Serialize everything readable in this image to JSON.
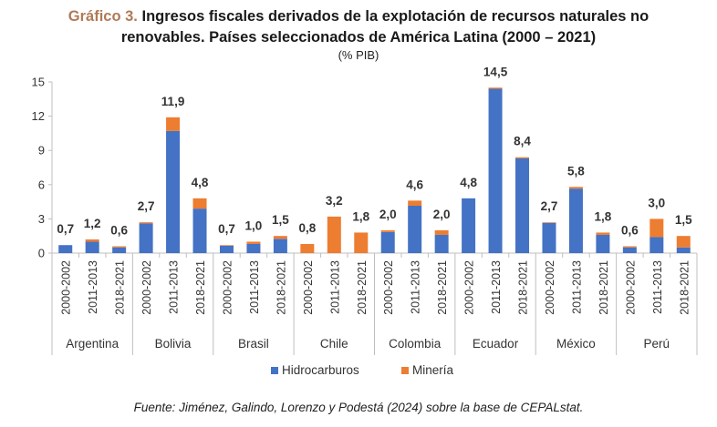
{
  "title_lead": "Gráfico 3.",
  "title_line1": "Ingresos fiscales derivados de la explotación de recursos naturales no",
  "title_line2": "renovables. Países seleccionados de América Latina (2000 – 2021)",
  "subtitle": "(% PIB)",
  "source": "Fuente: Jiménez, Galindo, Lorenzo y Podestá (2024) sobre la base de CEPALstat.",
  "colors": {
    "hidrocarburos": "#4472c4",
    "mineria": "#ed7d31"
  },
  "chart_data": {
    "type": "bar",
    "stacked": true,
    "ylim": [
      0,
      15
    ],
    "yticks": [
      0,
      3,
      6,
      9,
      12,
      15
    ],
    "grid": false,
    "legend_position": "bottom",
    "groups": [
      {
        "country": "Argentina",
        "bars": [
          {
            "period": "2000-2002",
            "hidrocarburos": 0.7,
            "mineria": 0.0,
            "total_label": "0,7"
          },
          {
            "period": "2011-2013",
            "hidrocarburos": 1.0,
            "mineria": 0.2,
            "total_label": "1,2"
          },
          {
            "period": "2018-2021",
            "hidrocarburos": 0.5,
            "mineria": 0.1,
            "total_label": "0,6"
          }
        ]
      },
      {
        "country": "Bolivia",
        "bars": [
          {
            "period": "2000-2002",
            "hidrocarburos": 2.6,
            "mineria": 0.1,
            "total_label": "2,7"
          },
          {
            "period": "2011-2013",
            "hidrocarburos": 10.7,
            "mineria": 1.2,
            "total_label": "11,9"
          },
          {
            "period": "2018-2021",
            "hidrocarburos": 3.9,
            "mineria": 0.9,
            "total_label": "4,8"
          }
        ]
      },
      {
        "country": "Brasil",
        "bars": [
          {
            "period": "2000-2002",
            "hidrocarburos": 0.65,
            "mineria": 0.05,
            "total_label": "0,7"
          },
          {
            "period": "2011-2013",
            "hidrocarburos": 0.8,
            "mineria": 0.2,
            "total_label": "1,0"
          },
          {
            "period": "2018-2021",
            "hidrocarburos": 1.25,
            "mineria": 0.25,
            "total_label": "1,5"
          }
        ]
      },
      {
        "country": "Chile",
        "bars": [
          {
            "period": "2000-2002",
            "hidrocarburos": 0.0,
            "mineria": 0.8,
            "total_label": "0,8"
          },
          {
            "period": "2011-2013",
            "hidrocarburos": 0.0,
            "mineria": 3.2,
            "total_label": "3,2"
          },
          {
            "period": "2018-2021",
            "hidrocarburos": 0.0,
            "mineria": 1.8,
            "total_label": "1,8"
          }
        ]
      },
      {
        "country": "Colombia",
        "bars": [
          {
            "period": "2000-2002",
            "hidrocarburos": 1.85,
            "mineria": 0.15,
            "total_label": "2,0"
          },
          {
            "period": "2011-2013",
            "hidrocarburos": 4.15,
            "mineria": 0.45,
            "total_label": "4,6"
          },
          {
            "period": "2018-2021",
            "hidrocarburos": 1.6,
            "mineria": 0.4,
            "total_label": "2,0"
          }
        ]
      },
      {
        "country": "Ecuador",
        "bars": [
          {
            "period": "2000-2002",
            "hidrocarburos": 4.8,
            "mineria": 0.0,
            "total_label": "4,8"
          },
          {
            "period": "2011-2013",
            "hidrocarburos": 14.4,
            "mineria": 0.1,
            "total_label": "14,5"
          },
          {
            "period": "2018-2021",
            "hidrocarburos": 8.3,
            "mineria": 0.1,
            "total_label": "8,4"
          }
        ]
      },
      {
        "country": "México",
        "bars": [
          {
            "period": "2000-2002",
            "hidrocarburos": 2.65,
            "mineria": 0.05,
            "total_label": "2,7"
          },
          {
            "period": "2011-2013",
            "hidrocarburos": 5.65,
            "mineria": 0.15,
            "total_label": "5,8"
          },
          {
            "period": "2018-2021",
            "hidrocarburos": 1.6,
            "mineria": 0.2,
            "total_label": "1,8"
          }
        ]
      },
      {
        "country": "Perú",
        "bars": [
          {
            "period": "2000-2002",
            "hidrocarburos": 0.5,
            "mineria": 0.1,
            "total_label": "0,6"
          },
          {
            "period": "2011-2013",
            "hidrocarburos": 1.4,
            "mineria": 1.6,
            "total_label": "3,0"
          },
          {
            "period": "2018-2021",
            "hidrocarburos": 0.5,
            "mineria": 1.0,
            "total_label": "1,5"
          }
        ]
      }
    ],
    "legend": [
      {
        "key": "hidrocarburos",
        "label": "Hidrocarburos"
      },
      {
        "key": "mineria",
        "label": "Minería"
      }
    ]
  }
}
